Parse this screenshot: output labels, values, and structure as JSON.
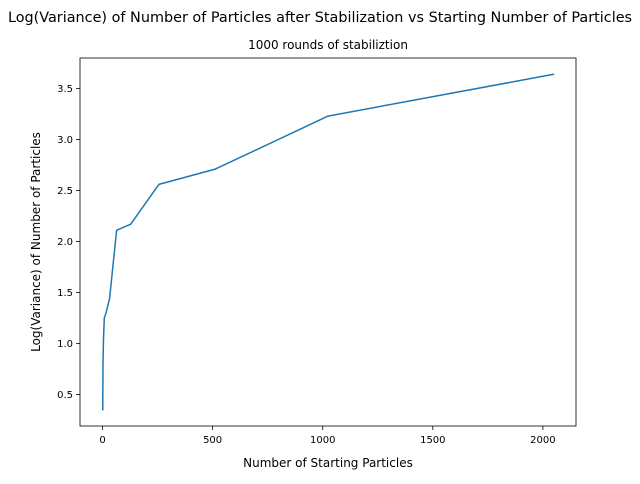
{
  "chart_data": {
    "type": "line",
    "title": "Log(Variance) of Number of Particles after Stabilization vs Starting Number of Particles",
    "subtitle": "1000 rounds of stabiliztion",
    "xlabel": "Number of Starting Particles",
    "ylabel": "Log(Variance) of Number of Particles",
    "xlim": [
      -102.3,
      2150.3
    ],
    "ylim": [
      0.19,
      3.8
    ],
    "xticks": [
      0,
      500,
      1000,
      1500,
      2000
    ],
    "yticks": [
      0.5,
      1.0,
      1.5,
      2.0,
      2.5,
      3.0,
      3.5
    ],
    "xtick_labels": [
      "0",
      "500",
      "1000",
      "1500",
      "2000"
    ],
    "ytick_labels": [
      "0.5",
      "1.0",
      "1.5",
      "2.0",
      "2.5",
      "3.0",
      "3.5"
    ],
    "grid": false,
    "series": [
      {
        "color": "#1f77b4",
        "x": [
          1,
          2,
          4,
          8,
          16,
          32,
          64,
          128,
          256,
          512,
          1024,
          2048
        ],
        "y": [
          0.35,
          0.76,
          1.02,
          1.25,
          1.3,
          1.44,
          2.11,
          2.17,
          2.56,
          2.71,
          3.23,
          3.64
        ]
      }
    ]
  }
}
